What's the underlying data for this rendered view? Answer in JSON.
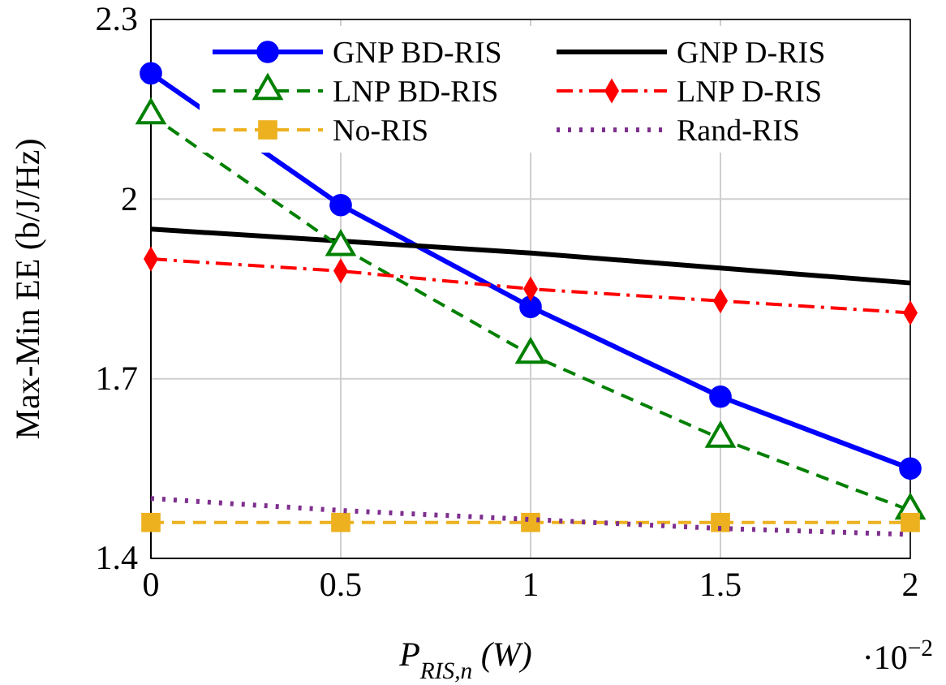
{
  "chart_data": {
    "type": "line",
    "xlabel": "P$_{RIS,n}$ (W)",
    "ylabel": "Max-Min EE (b/J/Hz)",
    "annotations": [
      "·10$^{−2}$"
    ],
    "x": [
      0,
      0.5,
      1,
      1.5,
      2
    ],
    "xlim": [
      0,
      2
    ],
    "xticks": [
      0,
      0.5,
      1,
      1.5,
      2
    ],
    "ylim": [
      1.4,
      2.3
    ],
    "yticks": [
      1.4,
      1.7,
      2,
      2.3
    ],
    "grid": true,
    "legend": "top right",
    "series": [
      {
        "name": "GNP BD-RIS",
        "color": "#0000ff",
        "marker": "circle",
        "line_style": "solid",
        "values": [
          2.21,
          1.99,
          1.82,
          1.67,
          1.55
        ]
      },
      {
        "name": "GNP D-RIS",
        "color": "#000000",
        "marker": "none",
        "line_style": "solid",
        "values": [
          1.95,
          1.93,
          1.91,
          1.885,
          1.86
        ]
      },
      {
        "name": "LNP BD-RIS",
        "color": "#008000",
        "marker": "triangle",
        "line_style": "dashed",
        "values": [
          2.14,
          1.92,
          1.74,
          1.6,
          1.48
        ]
      },
      {
        "name": "LNP D-RIS",
        "color": "#ff0000",
        "marker": "diamond",
        "line_style": "dashdot",
        "values": [
          1.9,
          1.88,
          1.85,
          1.83,
          1.81
        ]
      },
      {
        "name": "No-RIS",
        "color": "#edb120",
        "marker": "square",
        "line_style": "dashed",
        "values": [
          1.46,
          1.46,
          1.46,
          1.46,
          1.46
        ]
      },
      {
        "name": "Rand-RIS",
        "color": "#7e2f8e",
        "marker": "none",
        "line_style": "dotted",
        "values": [
          1.5,
          1.48,
          1.465,
          1.45,
          1.44
        ]
      }
    ]
  }
}
